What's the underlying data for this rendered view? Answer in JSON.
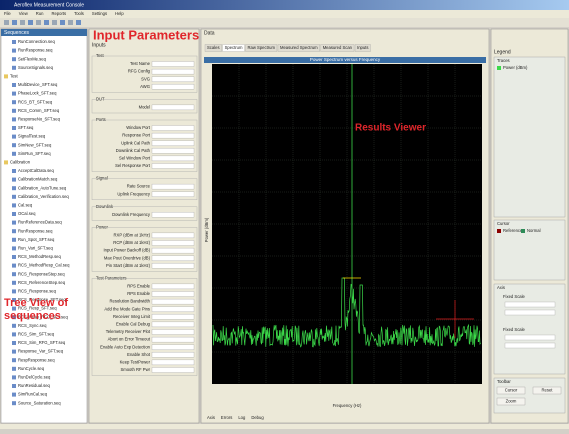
{
  "window": {
    "title": "Aeroflex Measurement Console",
    "menu": [
      "File",
      "View",
      "Run",
      "Reports",
      "Tools",
      "Settings",
      "Help"
    ]
  },
  "annotations": {
    "input_parameters": "Input Parameters",
    "results_viewer": "Results Viewer",
    "tree_view": [
      "Tree View of",
      "sequences"
    ]
  },
  "tree": {
    "header": "Sequences",
    "items": [
      "RunConnection.seq",
      "RunResponse.seq",
      "SetFlexMe.seq",
      "SourceSignals.seq",
      "Test",
      "MultiDevice_SFT.seq",
      "PhaseLock_SFT.seq",
      "RCS_BT_SFT.seq",
      "RCS_Comm_SFT.seq",
      "ResponseNo_SFT.seq",
      "SFT.seq",
      "SignalTest.seq",
      "SimNew_SFT.seq",
      "SimRun_SFT.seq",
      "Calibration",
      "AcceptCalData.seq",
      "CalibrationMatch.seq",
      "Calibration_AutoTune.seq",
      "Calibration_Verification.seq",
      "Cal.seq",
      "OCal.seq",
      "RunReferenceData.seq",
      "RunResponse.seq",
      "Run_Spot_SFT.seq",
      "Run_Vari_SFT.seq",
      "RCS_MethodResp.seq",
      "RCS_MethodResp_Cal.seq",
      "RCS_ResponseStep.seq",
      "RCS_ReferenceStep.seq",
      "RCS_Response.seq",
      "RCS_Response_SFT.seq",
      "RCS_Resp_SFT.seq",
      "RCS_Resp_RFG_SFT.seq",
      "RCS_Sync.seq",
      "RCS_Sim_SFT.seq",
      "RCS_Sim_RFG_SFT.seq",
      "Response_Var_SFT.seq",
      "RespResponse.seq",
      "RunCycle.seq",
      "RunDelCycle.seq",
      "RunResidual.seq",
      "SimRunCal.seq",
      "Source_Saturation.seq"
    ]
  },
  "inputs": {
    "header": "Inputs",
    "sections": [
      {
        "title": "Test",
        "fields": [
          "Test Name",
          "RFG Config",
          "SVG",
          "AWG"
        ]
      },
      {
        "title": "DUT",
        "fields": [
          "Model"
        ]
      },
      {
        "title": "Ports",
        "fields": [
          "Window Port",
          "Response Port",
          "Uplink Cal Path",
          "Downlink Cal Path",
          "Sel Window Port",
          "Sel Response Port"
        ]
      },
      {
        "title": "Signal",
        "fields": [
          "Rate Source",
          "Uplink Frequency"
        ]
      },
      {
        "title": "Downlink",
        "fields": [
          "Downlink Frequency"
        ]
      },
      {
        "title": "Power",
        "fields": [
          "RXP (dBm at 1kHz)",
          "RCP (dBm at 1kHz)",
          "Input Power Backoff (dB)",
          "Max Pout Overdrive (dB)",
          "Pin Start (dBm at 1kHz)"
        ]
      },
      {
        "title": "Test Parameters",
        "fields": [
          "RPS Enable",
          "RPS Enable",
          "Resolution Bandwidth",
          "Add the Mode Gate Pins",
          "Receiver Integ Limit",
          "Enable Cal Debug",
          "Telemetry Receiver Plot",
          "Abort on Error Timeout",
          "Enable Auto Exp Detection",
          "Enable Shot",
          "Keep TestPower",
          "Smooth RF Pwr"
        ]
      }
    ]
  },
  "viewer": {
    "header": "Data",
    "tabs": [
      "Scales",
      "Spectrum",
      "Raw Spectrum",
      "Measured Spectrum",
      "Measured Scan",
      "Inputs"
    ],
    "plot_title": "Power Spectrum versus Frequency",
    "x_label": "Frequency (Hz)",
    "y_label": "Power (dBm)"
  },
  "legend": {
    "title": "Legend",
    "traces_header": "Traces",
    "trace": "Power (dBm)",
    "cursor_header": "Cursor",
    "cursor_items": [
      "Reference",
      "Normal"
    ],
    "axis_header": "Axis",
    "scale_items": [
      "Fixed Scale",
      "Fixed Scale"
    ],
    "toolbar_header": "Toolbar",
    "buttons": [
      "Cursor",
      "Reset",
      "Zoom"
    ]
  },
  "bottom_tabs": [
    "Axis",
    "Errors",
    "Log",
    "Debug"
  ]
}
